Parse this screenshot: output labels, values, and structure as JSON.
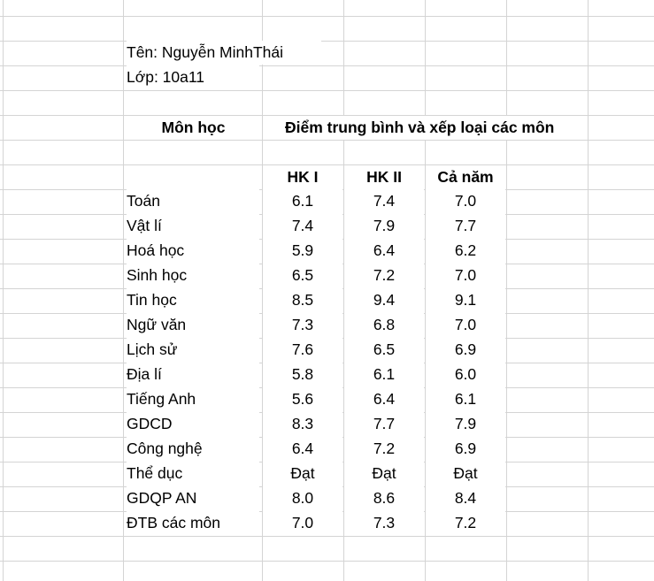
{
  "student": {
    "name_line": "Tên: Nguyễn MinhThái",
    "class_line": "Lớp: 10a11"
  },
  "table": {
    "subject_header": "Môn học",
    "group_header": "Điểm trung bình và xếp loại các môn",
    "columns": [
      "HK I",
      "HK II",
      "Cả năm"
    ],
    "rows": [
      {
        "subject": "Toán",
        "hk1": "6.1",
        "hk2": "7.4",
        "year": "7.0"
      },
      {
        "subject": "Vật lí",
        "hk1": "7.4",
        "hk2": "7.9",
        "year": "7.7"
      },
      {
        "subject": "Hoá học",
        "hk1": "5.9",
        "hk2": "6.4",
        "year": "6.2"
      },
      {
        "subject": "Sinh học",
        "hk1": "6.5",
        "hk2": "7.2",
        "year": "7.0"
      },
      {
        "subject": "Tin học",
        "hk1": "8.5",
        "hk2": "9.4",
        "year": "9.1"
      },
      {
        "subject": "Ngữ văn",
        "hk1": "7.3",
        "hk2": "6.8",
        "year": "7.0"
      },
      {
        "subject": "Lịch sử",
        "hk1": "7.6",
        "hk2": "6.5",
        "year": "6.9"
      },
      {
        "subject": "Địa lí",
        "hk1": "5.8",
        "hk2": "6.1",
        "year": "6.0"
      },
      {
        "subject": "Tiếng Anh",
        "hk1": "5.6",
        "hk2": "6.4",
        "year": "6.1"
      },
      {
        "subject": "GDCD",
        "hk1": "8.3",
        "hk2": "7.7",
        "year": "7.9"
      },
      {
        "subject": "Công nghệ",
        "hk1": "6.4",
        "hk2": "7.2",
        "year": "6.9"
      },
      {
        "subject": "Thể dục",
        "hk1": "Đạt",
        "hk2": "Đạt",
        "year": "Đạt"
      },
      {
        "subject": "GDQP AN",
        "hk1": "8.0",
        "hk2": "8.6",
        "year": "8.4"
      },
      {
        "subject": "ĐTB các môn",
        "hk1": "7.0",
        "hk2": "7.3",
        "year": "7.2"
      }
    ]
  }
}
